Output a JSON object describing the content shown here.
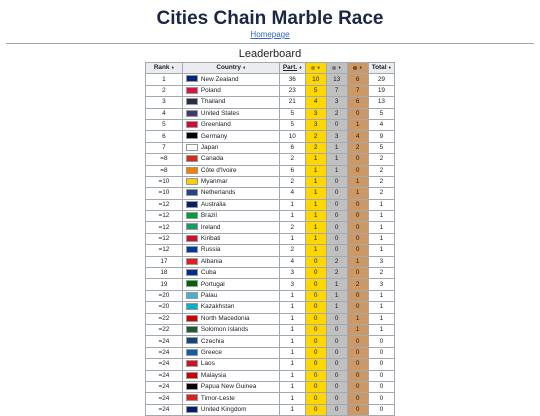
{
  "page": {
    "title": "Cities Chain Marble Race",
    "home_link": "Homepage",
    "subtitle": "Leaderboard"
  },
  "table": {
    "headers": {
      "rank": "Rank",
      "country": "Country",
      "part": "Part.",
      "total": "Total"
    },
    "medal_colors": {
      "gold": "#ffd700",
      "silver": "#c0c0c0",
      "bronze": "#cc9966"
    },
    "rows": [
      {
        "rank": "1",
        "country": "New Zealand",
        "flag": "#00247d",
        "part": "36",
        "gold": "10",
        "silver": "13",
        "bronze": "6",
        "total": "29"
      },
      {
        "rank": "2",
        "country": "Poland",
        "flag": "#dc143c",
        "part": "23",
        "gold": "5",
        "silver": "7",
        "bronze": "7",
        "total": "19"
      },
      {
        "rank": "3",
        "country": "Thailand",
        "flag": "#2d2a4a",
        "part": "21",
        "gold": "4",
        "silver": "3",
        "bronze": "6",
        "total": "13"
      },
      {
        "rank": "4",
        "country": "United States",
        "flag": "#3c3b6e",
        "part": "5",
        "gold": "3",
        "silver": "2",
        "bronze": "0",
        "total": "5"
      },
      {
        "rank": "5",
        "country": "Greenland",
        "flag": "#d00c33",
        "part": "5",
        "gold": "3",
        "silver": "0",
        "bronze": "1",
        "total": "4"
      },
      {
        "rank": "6",
        "country": "Germany",
        "flag": "#000000",
        "part": "10",
        "gold": "2",
        "silver": "3",
        "bronze": "4",
        "total": "9"
      },
      {
        "rank": "7",
        "country": "Japan",
        "flag": "#ffffff",
        "part": "6",
        "gold": "2",
        "silver": "1",
        "bronze": "2",
        "total": "5"
      },
      {
        "rank": "=8",
        "country": "Canada",
        "flag": "#d52b1e",
        "part": "2",
        "gold": "1",
        "silver": "1",
        "bronze": "0",
        "total": "2"
      },
      {
        "rank": "=8",
        "country": "Côte d'Ivoire",
        "flag": "#f77f00",
        "part": "6",
        "gold": "1",
        "silver": "1",
        "bronze": "0",
        "total": "2"
      },
      {
        "rank": "=10",
        "country": "Myanmar",
        "flag": "#fecb00",
        "part": "2",
        "gold": "1",
        "silver": "0",
        "bronze": "1",
        "total": "2"
      },
      {
        "rank": "=10",
        "country": "Netherlands",
        "flag": "#21468b",
        "part": "4",
        "gold": "1",
        "silver": "0",
        "bronze": "1",
        "total": "2"
      },
      {
        "rank": "=12",
        "country": "Australia",
        "flag": "#012169",
        "part": "1",
        "gold": "1",
        "silver": "0",
        "bronze": "0",
        "total": "1"
      },
      {
        "rank": "=12",
        "country": "Brazil",
        "flag": "#009c3b",
        "part": "1",
        "gold": "1",
        "silver": "0",
        "bronze": "0",
        "total": "1"
      },
      {
        "rank": "=12",
        "country": "Ireland",
        "flag": "#169b62",
        "part": "2",
        "gold": "1",
        "silver": "0",
        "bronze": "0",
        "total": "1"
      },
      {
        "rank": "=12",
        "country": "Kiribati",
        "flag": "#ce1126",
        "part": "1",
        "gold": "1",
        "silver": "0",
        "bronze": "0",
        "total": "1"
      },
      {
        "rank": "=12",
        "country": "Russia",
        "flag": "#0039a6",
        "part": "2",
        "gold": "1",
        "silver": "0",
        "bronze": "0",
        "total": "1"
      },
      {
        "rank": "17",
        "country": "Albania",
        "flag": "#e41e20",
        "part": "4",
        "gold": "0",
        "silver": "2",
        "bronze": "1",
        "total": "3"
      },
      {
        "rank": "18",
        "country": "Cuba",
        "flag": "#002a8f",
        "part": "3",
        "gold": "0",
        "silver": "2",
        "bronze": "0",
        "total": "2"
      },
      {
        "rank": "19",
        "country": "Portugal",
        "flag": "#006600",
        "part": "3",
        "gold": "0",
        "silver": "1",
        "bronze": "2",
        "total": "3"
      },
      {
        "rank": "=20",
        "country": "Palau",
        "flag": "#4aadd6",
        "part": "1",
        "gold": "0",
        "silver": "1",
        "bronze": "0",
        "total": "1"
      },
      {
        "rank": "=20",
        "country": "Kazakhstan",
        "flag": "#00afca",
        "part": "1",
        "gold": "0",
        "silver": "1",
        "bronze": "0",
        "total": "1"
      },
      {
        "rank": "=22",
        "country": "North Macedonia",
        "flag": "#d20000",
        "part": "1",
        "gold": "0",
        "silver": "0",
        "bronze": "1",
        "total": "1"
      },
      {
        "rank": "=22",
        "country": "Solomon Islands",
        "flag": "#215b33",
        "part": "1",
        "gold": "0",
        "silver": "0",
        "bronze": "1",
        "total": "1"
      },
      {
        "rank": "=24",
        "country": "Czechia",
        "flag": "#11457e",
        "part": "1",
        "gold": "0",
        "silver": "0",
        "bronze": "0",
        "total": "0"
      },
      {
        "rank": "=24",
        "country": "Greece",
        "flag": "#0d5eaf",
        "part": "1",
        "gold": "0",
        "silver": "0",
        "bronze": "0",
        "total": "0"
      },
      {
        "rank": "=24",
        "country": "Laos",
        "flag": "#ce1126",
        "part": "1",
        "gold": "0",
        "silver": "0",
        "bronze": "0",
        "total": "0"
      },
      {
        "rank": "=24",
        "country": "Malaysia",
        "flag": "#cc0001",
        "part": "1",
        "gold": "0",
        "silver": "0",
        "bronze": "0",
        "total": "0"
      },
      {
        "rank": "=24",
        "country": "Papua New Guinea",
        "flag": "#000000",
        "part": "1",
        "gold": "0",
        "silver": "0",
        "bronze": "0",
        "total": "0"
      },
      {
        "rank": "=24",
        "country": "Timor-Leste",
        "flag": "#dc241f",
        "part": "1",
        "gold": "0",
        "silver": "0",
        "bronze": "0",
        "total": "0"
      },
      {
        "rank": "=24",
        "country": "United Kingdom",
        "flag": "#012169",
        "part": "1",
        "gold": "0",
        "silver": "0",
        "bronze": "0",
        "total": "0"
      }
    ]
  }
}
